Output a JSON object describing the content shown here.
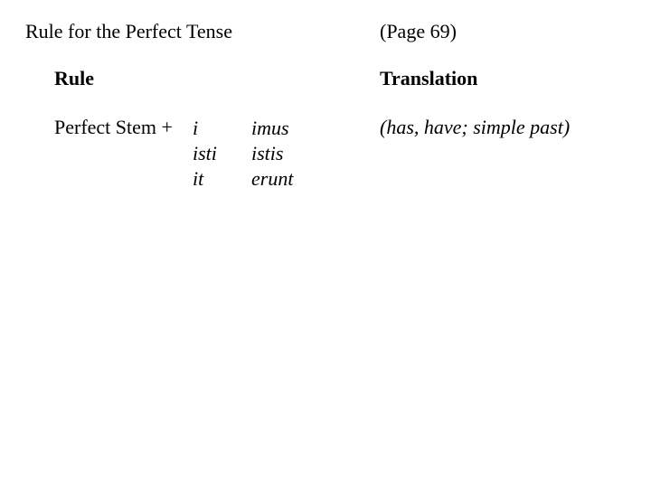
{
  "title": "Rule for the Perfect Tense",
  "page_ref": "(Page 69)",
  "headers": {
    "rule": "Rule",
    "translation": "Translation"
  },
  "stem_label": "Perfect Stem +",
  "endings": {
    "col1": [
      "i",
      "isti",
      "it"
    ],
    "col2": [
      "imus",
      "istis",
      "erunt"
    ]
  },
  "translation_text": "(has, have; simple past)",
  "style": {
    "background_color": "#ffffff",
    "text_color": "#000000",
    "font_family": "Times New Roman",
    "title_fontsize": 22,
    "header_fontsize": 22,
    "body_fontsize": 22,
    "line_height": 28
  }
}
